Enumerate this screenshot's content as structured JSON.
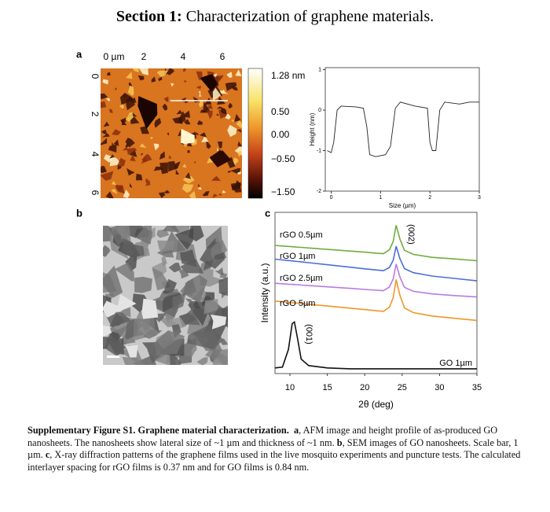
{
  "header": {
    "title_bold": "Section 1:",
    "title_rest": " Characterization of graphene materials."
  },
  "panels": [
    "a",
    "b",
    "c"
  ],
  "afm": {
    "top_ticks": [
      "0 µm",
      "2",
      "4",
      "6"
    ],
    "left_ticks": [
      "0",
      "2",
      "4",
      "6"
    ],
    "flake_label": "1"
  },
  "colorbar": [
    "1.28 nm",
    "0.50",
    "0.00",
    "−0.50",
    "−1.50"
  ],
  "chart_data": [
    {
      "type": "line",
      "xlabel": "Size (µm)",
      "ylabel": "Height (nm)",
      "x": [
        -0.08,
        0.0,
        0.05,
        0.12,
        0.2,
        0.5,
        0.65,
        0.72,
        0.78,
        0.9,
        1.1,
        1.2,
        1.3,
        1.4,
        1.7,
        1.95,
        2.0,
        2.05,
        2.12,
        2.2,
        2.3,
        2.6,
        2.8,
        3.0
      ],
      "values": [
        -1.0,
        -1.05,
        -0.8,
        0.0,
        0.1,
        0.08,
        0.05,
        -0.4,
        -1.1,
        -1.15,
        -1.1,
        -0.9,
        0.05,
        0.2,
        0.1,
        0.05,
        -0.8,
        -1.0,
        -1.0,
        0.0,
        0.2,
        0.15,
        0.2,
        0.2
      ],
      "color": "#222222",
      "xlim": [
        -0.12,
        3.0
      ],
      "ylim": [
        -2,
        1.05
      ],
      "xticks": [
        0,
        1,
        2,
        3
      ],
      "yticks": [
        -2,
        -1,
        0,
        1
      ]
    },
    {
      "type": "line",
      "xlabel": "2θ (deg)",
      "ylabel": "Intensity (a.u.)",
      "x": [
        8,
        9,
        9.8,
        10.3,
        10.6,
        11,
        11.5,
        12.5,
        15,
        18,
        20,
        21.5,
        22.5,
        23.3,
        23.8,
        24.2,
        24.7,
        25.3,
        26.5,
        29,
        32,
        35
      ],
      "series": [
        {
          "name": "rGO 0.5µm",
          "color": "#6fae3c",
          "values": [
            7.95,
            7.91,
            7.89,
            7.87,
            7.86,
            7.84,
            7.83,
            7.79,
            7.7,
            7.6,
            7.53,
            7.47,
            7.44,
            7.68,
            8.19,
            9.2,
            8.34,
            7.65,
            7.39,
            7.21,
            7.11,
            7.0
          ]
        },
        {
          "name": "rGO 1µm",
          "color": "#4a6fd8",
          "values": [
            7.1,
            7.05,
            7.01,
            6.99,
            6.97,
            6.95,
            6.93,
            6.88,
            6.75,
            6.6,
            6.5,
            6.43,
            6.38,
            6.58,
            7.02,
            7.9,
            7.13,
            6.51,
            6.26,
            6.05,
            5.9,
            5.75
          ]
        },
        {
          "name": "rGO 2.5µm",
          "color": "#b77be3",
          "values": [
            5.6,
            5.57,
            5.54,
            5.53,
            5.52,
            5.51,
            5.49,
            5.46,
            5.38,
            5.29,
            5.22,
            5.17,
            5.14,
            5.37,
            5.86,
            6.8,
            5.99,
            5.35,
            5.1,
            4.94,
            4.84,
            4.75
          ]
        },
        {
          "name": "rGO 5µm",
          "color": "#f0962a",
          "values": [
            4.5,
            4.46,
            4.42,
            4.4,
            4.38,
            4.37,
            4.34,
            4.3,
            4.19,
            4.06,
            3.97,
            3.9,
            3.86,
            4.12,
            4.7,
            5.83,
            4.86,
            4.08,
            3.78,
            3.57,
            3.43,
            3.3
          ]
        },
        {
          "name": "GO 1µm",
          "color": "#111111",
          "values": [
            0.35,
            0.4,
            1.5,
            3.1,
            3.2,
            2.2,
            0.9,
            0.5,
            0.35,
            0.3,
            0.3,
            0.3,
            0.3,
            0.3,
            0.3,
            0.3,
            0.3,
            0.3,
            0.3,
            0.3,
            0.3,
            0.3
          ]
        }
      ],
      "annotations": [
        "(002)",
        "(001)"
      ],
      "xlim": [
        8,
        35
      ],
      "ylim": [
        0,
        10
      ],
      "xticks": [
        10,
        15,
        20,
        25,
        30,
        35
      ]
    }
  ],
  "caption": [
    {
      "text": "Supplementary Figure S1. Graphene material characterization.",
      "bold": true
    },
    {
      "text": "  ",
      "bold": false
    },
    {
      "text": "a",
      "bold": true
    },
    {
      "text": ", AFM image and height profile of as-produced GO nanosheets. The nanosheets show lateral size of ~1 µm and thickness of ~1 nm. ",
      "bold": false
    },
    {
      "text": "b",
      "bold": true
    },
    {
      "text": ", SEM images of GO nanosheets. Scale bar, 1 µm. ",
      "bold": false
    },
    {
      "text": "c",
      "bold": true
    },
    {
      "text": ", X-ray diffraction patterns of the graphene films used in the live mosquito experiments and puncture tests. The calculated interlayer spacing for rGO films is 0.37 nm and for GO films is 0.84 nm.",
      "bold": false
    }
  ]
}
